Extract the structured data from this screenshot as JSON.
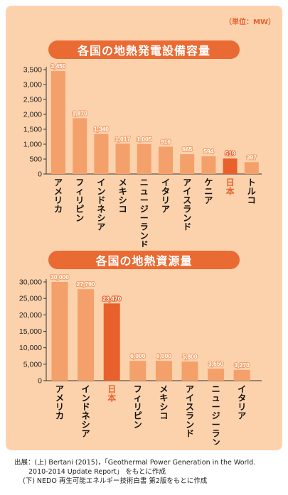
{
  "unit_label": "（単位：MW）",
  "source": {
    "line1": "出展：(上) Bertani (2015)，「Geothermal Power Generation in the World.",
    "line2": "2010-2014 Update Report」 をもとに作成",
    "line3": "(下) NEDO 再生可能エネルギー技術白書 第2版をもとに作成"
  },
  "colors": {
    "bar": "#f4a06a",
    "highlight": "#e8602c",
    "panel": "#fcd2ad",
    "pill": "#e96a33"
  },
  "chart_data": [
    {
      "type": "bar",
      "title": "各国の地熱発電設備容量",
      "categories": [
        "アメリカ",
        "フィリピン",
        "インドネシア",
        "メキシコ",
        "ニュージーランド",
        "イタリア",
        "アイスランド",
        "ケニア",
        "日本",
        "トルコ"
      ],
      "values": [
        3450,
        1870,
        1340,
        1017,
        1005,
        916,
        665,
        594,
        519,
        397
      ],
      "value_labels": [
        "3,450",
        "1,870",
        "1,340",
        "1,017",
        "1,005",
        "916",
        "665",
        "594",
        "519",
        "397"
      ],
      "highlight": "日本",
      "ylim": [
        0,
        3500
      ],
      "yticks": [
        0,
        500,
        1000,
        1500,
        2000,
        2500,
        3000,
        3500
      ],
      "ytick_labels": [
        "0",
        "500",
        "1,000",
        "1,500",
        "2,000",
        "2,500",
        "3,000",
        "3,500"
      ],
      "xlabel": "",
      "ylabel": ""
    },
    {
      "type": "bar",
      "title": "各国の地熱資源量",
      "categories": [
        "アメリカ",
        "インドネシア",
        "日本",
        "フィリピン",
        "メキシコ",
        "アイスランド",
        "ニュージーランド",
        "イタリア"
      ],
      "values": [
        30000,
        27790,
        23470,
        6000,
        6000,
        5800,
        3650,
        3270
      ],
      "value_labels": [
        "30,000",
        "27,790",
        "23,470",
        "6,000",
        "6,000",
        "5,800",
        "3,650",
        "3,270"
      ],
      "highlight": "日本",
      "ylim": [
        0,
        30000
      ],
      "yticks": [
        0,
        5000,
        10000,
        15000,
        20000,
        25000,
        30000
      ],
      "ytick_labels": [
        "0",
        "5,000",
        "10,000",
        "15,000",
        "20,000",
        "25,000",
        "30,000"
      ],
      "xlabel": "",
      "ylabel": ""
    }
  ]
}
